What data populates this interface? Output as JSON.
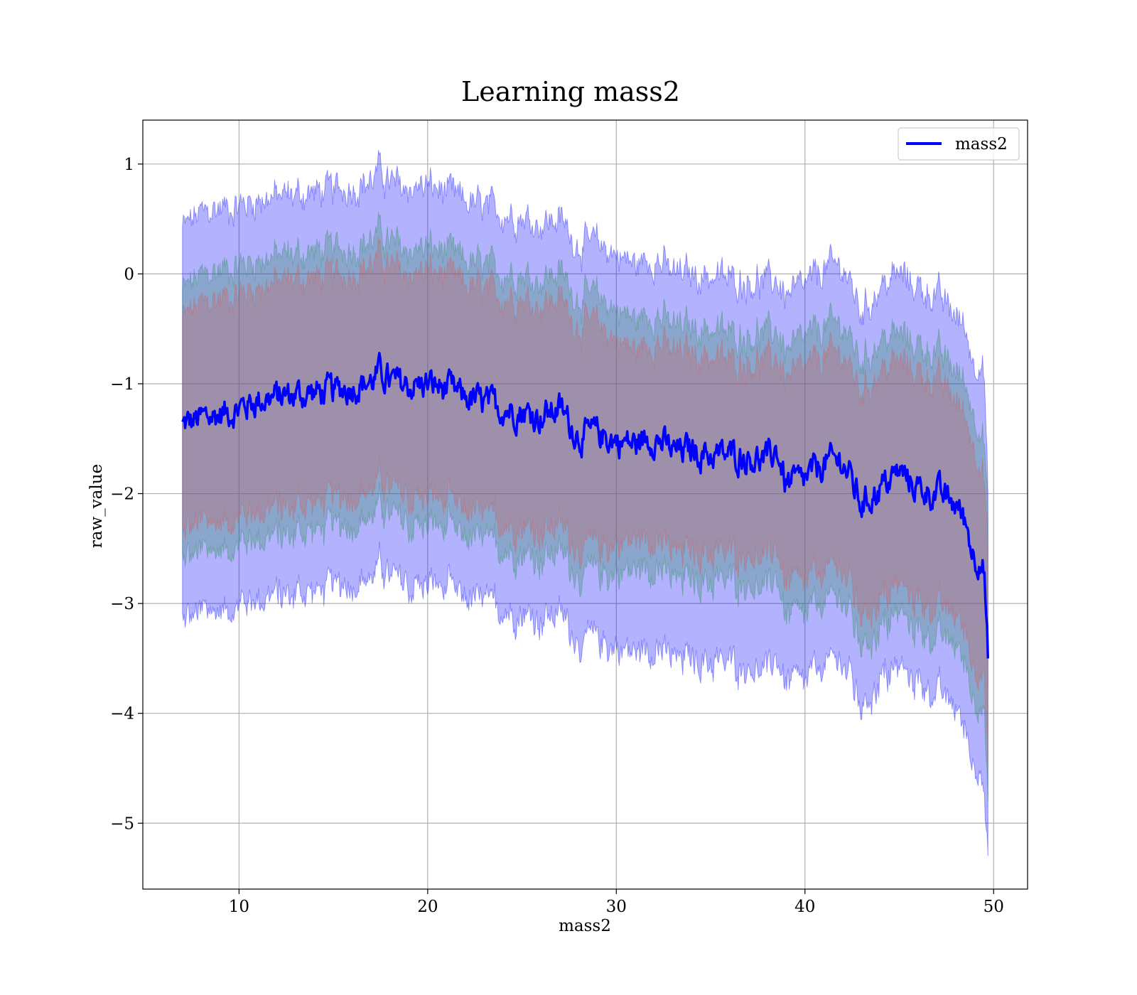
{
  "chart_data": {
    "type": "area",
    "title": "Learning mass2",
    "xlabel": "mass2",
    "ylabel": "raw_value",
    "xlim": [
      4.9,
      51.8
    ],
    "ylim": [
      -5.6,
      1.4
    ],
    "xticks": [
      10,
      20,
      30,
      40,
      50
    ],
    "yticks": [
      1,
      0,
      -1,
      -2,
      -3,
      -4,
      -5
    ],
    "xtick_labels": [
      "10",
      "20",
      "30",
      "40",
      "50"
    ],
    "ytick_labels": [
      "1",
      "0",
      "−1",
      "−2",
      "−3",
      "−4",
      "−5"
    ],
    "grid": true,
    "legend": {
      "position": "top-right",
      "entries": [
        "mass2"
      ]
    },
    "colors": {
      "line": "#0000ff",
      "band_outer": "#0000ff",
      "band_middle": "#2e8b57",
      "band_inner": "#cd5c5c"
    },
    "series": [
      {
        "name": "mass2",
        "x": [
          7.0,
          8.0,
          9.0,
          10.0,
          11.0,
          12.0,
          13.0,
          14.0,
          15.0,
          16.0,
          17.0,
          17.5,
          18.0,
          19.0,
          20.0,
          21.0,
          22.0,
          23.0,
          24.0,
          25.0,
          26.0,
          27.0,
          28.0,
          29.0,
          30.0,
          31.0,
          32.0,
          33.0,
          34.0,
          35.0,
          36.0,
          37.0,
          38.0,
          38.5,
          39.0,
          40.0,
          41.0,
          42.0,
          43.0,
          44.0,
          45.0,
          46.0,
          47.0,
          48.0,
          48.5,
          49.0,
          49.3,
          49.5,
          49.7
        ],
        "mean": [
          -1.38,
          -1.32,
          -1.28,
          -1.22,
          -1.15,
          -1.12,
          -1.1,
          -1.08,
          -1.07,
          -1.02,
          -0.98,
          -0.9,
          -0.98,
          -1.02,
          -1.0,
          -1.05,
          -1.12,
          -1.18,
          -1.22,
          -1.25,
          -1.3,
          -1.22,
          -1.48,
          -1.45,
          -1.52,
          -1.55,
          -1.48,
          -1.62,
          -1.6,
          -1.65,
          -1.65,
          -1.66,
          -1.7,
          -1.6,
          -1.92,
          -1.88,
          -1.72,
          -1.7,
          -2.1,
          -1.95,
          -1.8,
          -1.95,
          -2.0,
          -2.1,
          -2.25,
          -2.6,
          -2.55,
          -2.7,
          -3.5
        ],
        "inner": {
          "upper": [
            -0.4,
            -0.28,
            -0.22,
            -0.18,
            -0.12,
            -0.08,
            -0.05,
            -0.04,
            -0.02,
            0.02,
            0.08,
            0.15,
            0.05,
            0.0,
            0.02,
            -0.02,
            -0.1,
            -0.16,
            -0.2,
            -0.22,
            -0.28,
            -0.22,
            -0.48,
            -0.45,
            -0.6,
            -0.7,
            -0.6,
            -0.72,
            -0.72,
            -0.75,
            -0.8,
            -0.8,
            -0.8,
            -0.75,
            -0.95,
            -0.88,
            -0.75,
            -0.72,
            -1.08,
            -0.88,
            -0.8,
            -0.9,
            -0.98,
            -1.15,
            -1.3,
            -1.6,
            -1.65,
            -1.85,
            -2.5
          ],
          "lower": [
            -2.35,
            -2.28,
            -2.25,
            -2.2,
            -2.15,
            -2.12,
            -2.1,
            -2.08,
            -2.05,
            -2.02,
            -1.95,
            -1.88,
            -1.98,
            -2.05,
            -2.02,
            -2.08,
            -2.15,
            -2.22,
            -2.26,
            -2.3,
            -2.35,
            -2.28,
            -2.5,
            -2.48,
            -2.45,
            -2.42,
            -2.38,
            -2.55,
            -2.52,
            -2.56,
            -2.55,
            -2.55,
            -2.6,
            -2.48,
            -2.85,
            -2.82,
            -2.7,
            -2.68,
            -3.1,
            -2.98,
            -2.82,
            -2.98,
            -3.05,
            -3.1,
            -3.25,
            -3.6,
            -3.55,
            -3.6,
            -4.5
          ]
        },
        "middle": {
          "upper": [
            -0.15,
            -0.02,
            0.04,
            0.08,
            0.13,
            0.16,
            0.18,
            0.2,
            0.22,
            0.25,
            0.3,
            0.38,
            0.28,
            0.22,
            0.24,
            0.2,
            0.12,
            0.06,
            0.02,
            0.0,
            -0.05,
            0.02,
            -0.22,
            -0.2,
            -0.32,
            -0.42,
            -0.35,
            -0.48,
            -0.48,
            -0.5,
            -0.55,
            -0.55,
            -0.55,
            -0.5,
            -0.7,
            -0.6,
            -0.48,
            -0.45,
            -0.8,
            -0.6,
            -0.55,
            -0.65,
            -0.72,
            -0.88,
            -1.0,
            -1.3,
            -1.35,
            -1.5,
            -2.2
          ],
          "lower": [
            -2.6,
            -2.55,
            -2.5,
            -2.45,
            -2.4,
            -2.38,
            -2.35,
            -2.33,
            -2.3,
            -2.28,
            -2.2,
            -2.12,
            -2.22,
            -2.3,
            -2.28,
            -2.32,
            -2.4,
            -2.45,
            -2.5,
            -2.55,
            -2.6,
            -2.52,
            -2.75,
            -2.72,
            -2.72,
            -2.7,
            -2.65,
            -2.8,
            -2.78,
            -2.82,
            -2.8,
            -2.82,
            -2.88,
            -2.75,
            -3.15,
            -3.12,
            -2.98,
            -2.95,
            -3.38,
            -3.25,
            -3.08,
            -3.25,
            -3.32,
            -3.38,
            -3.55,
            -3.9,
            -3.85,
            -3.95,
            -4.8
          ]
        },
        "outer": {
          "upper": [
            0.42,
            0.55,
            0.6,
            0.62,
            0.68,
            0.7,
            0.72,
            0.74,
            0.76,
            0.8,
            0.84,
            0.95,
            0.82,
            0.78,
            0.8,
            0.74,
            0.66,
            0.6,
            0.56,
            0.52,
            0.46,
            0.5,
            0.26,
            0.28,
            0.18,
            0.08,
            0.15,
            0.0,
            0.0,
            -0.02,
            -0.05,
            -0.06,
            -0.08,
            -0.05,
            -0.2,
            -0.12,
            0.05,
            0.08,
            -0.35,
            -0.12,
            0.0,
            -0.12,
            -0.2,
            -0.38,
            -0.5,
            -0.85,
            -0.72,
            -0.9,
            -2.0
          ],
          "lower": [
            -3.15,
            -3.1,
            -3.05,
            -3.0,
            -2.95,
            -2.92,
            -2.9,
            -2.88,
            -2.85,
            -2.82,
            -2.75,
            -2.66,
            -2.78,
            -2.85,
            -2.82,
            -2.86,
            -2.95,
            -3.0,
            -3.05,
            -3.1,
            -3.15,
            -3.08,
            -3.35,
            -3.32,
            -3.4,
            -3.45,
            -3.38,
            -3.52,
            -3.5,
            -3.55,
            -3.55,
            -3.58,
            -3.62,
            -3.5,
            -3.75,
            -3.72,
            -3.55,
            -3.52,
            -3.95,
            -3.7,
            -3.58,
            -3.72,
            -3.82,
            -3.95,
            -4.15,
            -4.5,
            -4.4,
            -4.75,
            -5.3
          ]
        }
      }
    ]
  }
}
